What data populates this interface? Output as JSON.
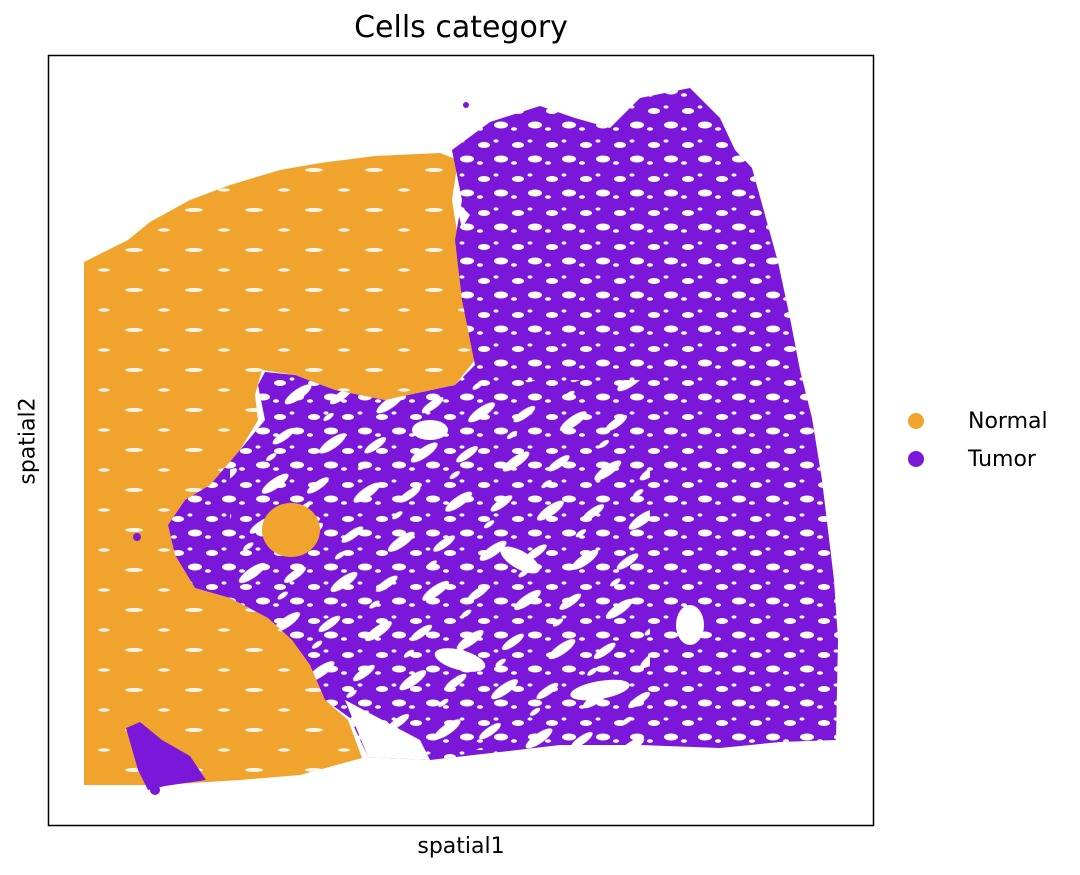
{
  "chart_data": {
    "type": "scatter",
    "title": "Cells category",
    "xlabel": "spatial1",
    "ylabel": "spatial2",
    "grid": false,
    "xticks": [],
    "yticks": [],
    "legend_position": "right",
    "series": [
      {
        "name": "Normal",
        "color": "#f0a42e",
        "region": "left and upper-left tissue area, plus a small islet near the center-left"
      },
      {
        "name": "Tumor",
        "color": "#7b17d8",
        "region": "right and central tissue area, plus a small patch at the bottom-left"
      }
    ]
  }
}
